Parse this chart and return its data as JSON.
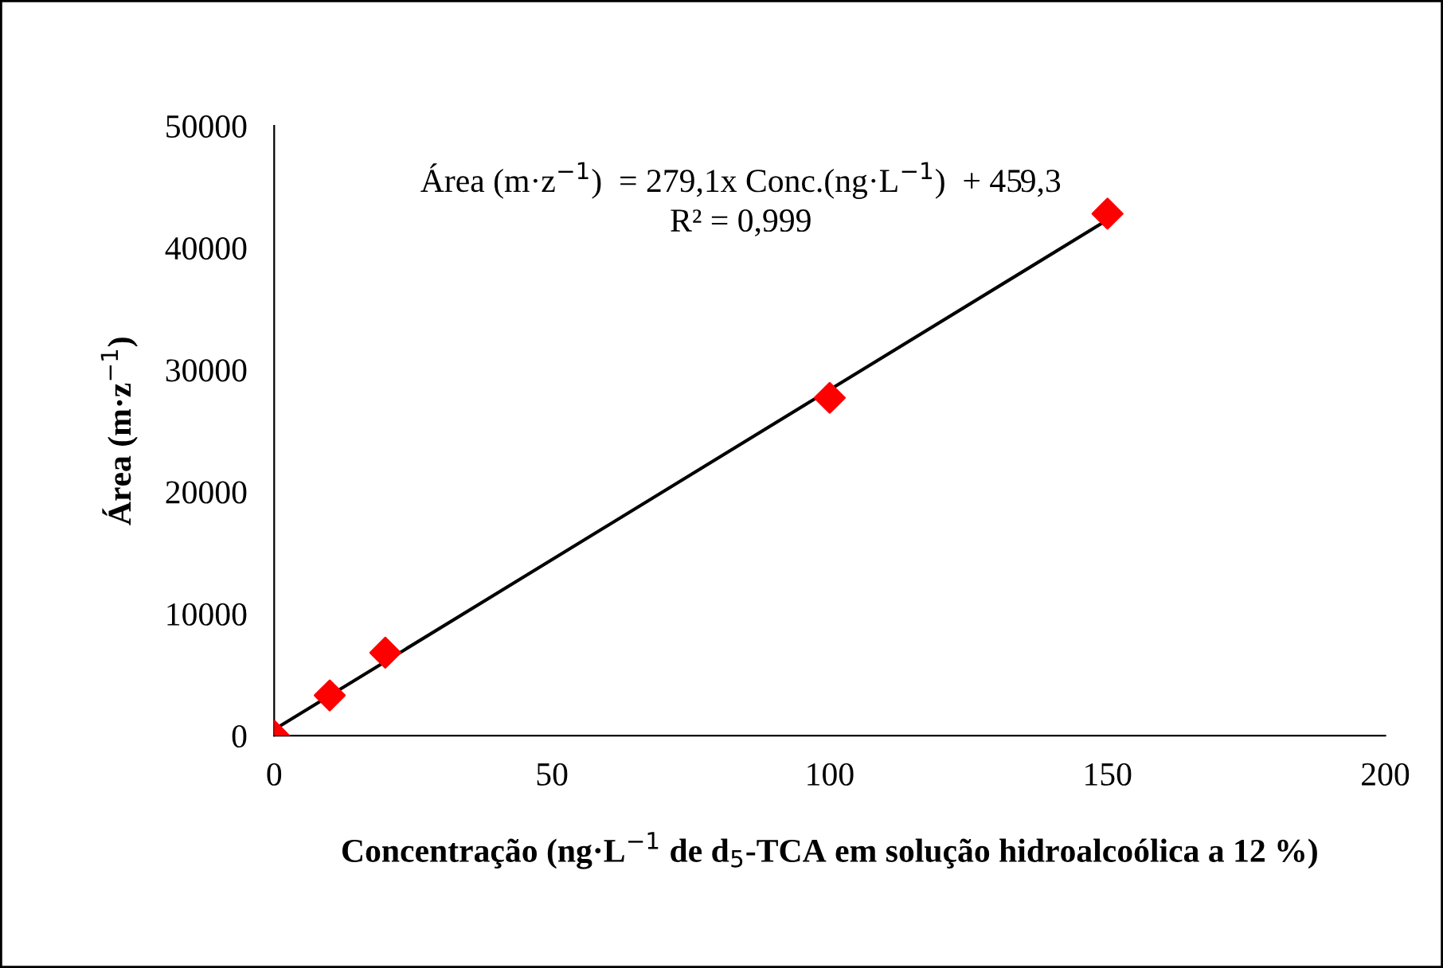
{
  "chart_data": {
    "type": "scatter",
    "xlabel": "Concentração (ng·L$^{−1}$ de d$_{5}$-TCA em solução hidroalcoólica a 12 %)",
    "ylabel": "Área (m·z$^{−1}$)",
    "annotations": [
      "Área (m·z$^{−1}$)  = 279,1x Conc.(ng·L$^{−1}$)  + 459,3",
      "R² = 0,999"
    ],
    "series": [
      {
        "color": "#ff0000",
        "marker": "diamond",
        "x": [
          0,
          10,
          20,
          100,
          150
        ],
        "values": [
          0,
          3300,
          6800,
          27700,
          42800
        ]
      },
      {
        "type": "line",
        "color": "#000000",
        "marker": "none",
        "line_style": "solid",
        "x": [
          0,
          150
        ],
        "values": [
          500,
          42300
        ]
      }
    ],
    "xlim": [
      0,
      200
    ],
    "xticks": [
      0,
      50,
      100,
      150,
      200
    ],
    "ylim": [
      0,
      50000
    ],
    "yticks": [
      0,
      10000,
      20000,
      30000,
      40000,
      50000
    ],
    "grid": false,
    "legend": false
  }
}
